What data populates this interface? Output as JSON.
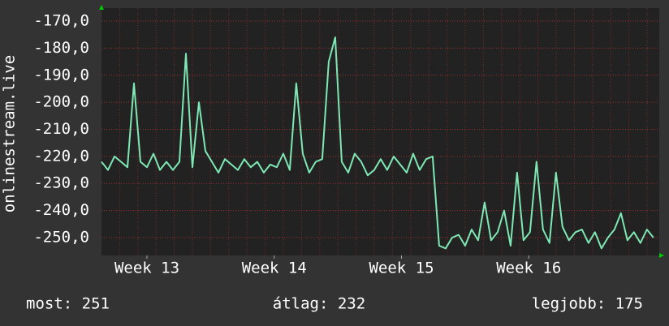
{
  "chart_data": {
    "type": "line",
    "y_label": "onlinestream.live",
    "color": "#7de8b4",
    "grid": true,
    "x": [
      0,
      1,
      2,
      3,
      4,
      5,
      6,
      7,
      8,
      9,
      10,
      11,
      12,
      13,
      14,
      15,
      16,
      17,
      18,
      19,
      20,
      21,
      22,
      23,
      24,
      25,
      26,
      27,
      28,
      29,
      30,
      31,
      32,
      33,
      34,
      35,
      36,
      37,
      38,
      39,
      40,
      41,
      42,
      43,
      44,
      45,
      46,
      47,
      48,
      49,
      50,
      51,
      52,
      53,
      54,
      55,
      56,
      57,
      58,
      59,
      60,
      61,
      62,
      63,
      64,
      65,
      66,
      67,
      68,
      69,
      70,
      71,
      72,
      73,
      74,
      75,
      76,
      77,
      78,
      79,
      80,
      81,
      82,
      83,
      84,
      85
    ],
    "values": [
      -222,
      -225,
      -220,
      -222,
      -224,
      -193,
      -222,
      -224,
      -219,
      -225,
      -222,
      -225,
      -222,
      -182,
      -224,
      -200,
      -218,
      -222,
      -226,
      -221,
      -223,
      -225,
      -221,
      -224,
      -222,
      -226,
      -223,
      -224,
      -219,
      -225,
      -193,
      -219,
      -226,
      -222,
      -221,
      -185,
      -176,
      -222,
      -226,
      -219,
      -222,
      -227,
      -225,
      -221,
      -225,
      -220,
      -223,
      -226,
      -219,
      -225,
      -221,
      -220,
      -253,
      -254,
      -250,
      -249,
      -253,
      -247,
      -251,
      -237,
      -251,
      -248,
      -240,
      -253,
      -226,
      -251,
      -248,
      -222,
      -247,
      -252,
      -226,
      -246,
      -251,
      -248,
      -247,
      -252,
      -248,
      -254,
      -250,
      -247,
      -241,
      -251,
      -248,
      -252,
      -247,
      -250
    ],
    "xlim": [
      0,
      85.9
    ],
    "xticks": [
      {
        "value": 7,
        "label": "Week 13"
      },
      {
        "value": 26.6,
        "label": "Week 14"
      },
      {
        "value": 46.2,
        "label": "Week 15"
      },
      {
        "value": 65.8,
        "label": "Week 16"
      }
    ],
    "ylim": [
      -256.6,
      -165.2
    ],
    "yticks": [
      {
        "value": -250,
        "label": "-250,0"
      },
      {
        "value": -240,
        "label": "-240,0"
      },
      {
        "value": -230,
        "label": "-230,0"
      },
      {
        "value": -220,
        "label": "-220,0"
      },
      {
        "value": -210,
        "label": "-210,0"
      },
      {
        "value": -200,
        "label": "-200,0"
      },
      {
        "value": -190,
        "label": "-190,0"
      },
      {
        "value": -180,
        "label": "-180,0"
      },
      {
        "value": -170,
        "label": "-170,0"
      }
    ],
    "footer": {
      "current": "most: 251",
      "average": "átlag: 232",
      "best": "legjobb: 175"
    }
  }
}
